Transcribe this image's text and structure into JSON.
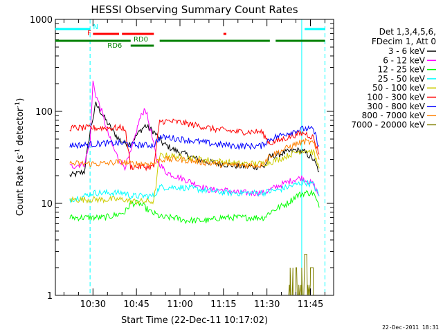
{
  "chart_data": {
    "type": "line",
    "title": "HESSI Observing Summary Count Rates",
    "xlabel": "Start Time (22-Dec-11 10:17:02)",
    "ylabel_parts": [
      "Count Rate (s",
      "-1",
      " detector",
      "-1",
      ")"
    ],
    "yscale": "log",
    "ylim": [
      1,
      1000
    ],
    "xlim": [
      "10:17:02",
      "11:53:00"
    ],
    "ytick_values": [
      1,
      10,
      100,
      1000
    ],
    "ytick_labels": [
      "1",
      "10",
      "100",
      "1000"
    ],
    "xtick_values": [
      "10:30",
      "10:45",
      "11:00",
      "11:15",
      "11:30",
      "11:45"
    ],
    "xtick_labels": [
      "10:30",
      "10:45",
      "11:00",
      "11:15",
      "11:30",
      "11:45"
    ],
    "timestamp": "22-Dec-2011 18:31",
    "legend": {
      "placement": "right",
      "header": [
        "Det 1,3,4,5,6,",
        "FDecim 1, Att 0"
      ]
    },
    "flag_labels": {
      "N": "N",
      "F": "F",
      "RD0": "RD0",
      "RD6": "RD6"
    },
    "flags": {
      "N": {
        "color": "#00ffff",
        "intervals": [
          [
            "10:17",
            "10:29"
          ],
          [
            "11:43",
            "11:50"
          ]
        ]
      },
      "F": {
        "color": "#ff0000",
        "intervals": [
          [
            "10:30",
            "10:39"
          ],
          [
            "10:40",
            "10:51"
          ],
          [
            "11:15",
            "11:16"
          ]
        ]
      },
      "RD0": {
        "color": "#008000",
        "intervals": [
          [
            "10:17",
            "10:43"
          ],
          [
            "10:53",
            "11:31"
          ],
          [
            "11:33",
            "11:50"
          ]
        ]
      },
      "RD6": {
        "color": "#008000",
        "intervals": [
          [
            "10:43",
            "10:51"
          ]
        ]
      }
    },
    "vlines": [
      {
        "t": "10:29",
        "style": "dashed",
        "color": "#00ffff"
      },
      {
        "t": "11:42",
        "style": "solid",
        "color": "#00ffff"
      },
      {
        "t": "11:50",
        "style": "dashed",
        "color": "#00ffff"
      }
    ],
    "series": [
      {
        "name": "3 - 6 keV",
        "color": "#000000",
        "points": [
          [
            "10:22",
            20
          ],
          [
            "10:27",
            22
          ],
          [
            "10:29",
            60
          ],
          [
            "10:31",
            120
          ],
          [
            "10:33",
            95
          ],
          [
            "10:35",
            75
          ],
          [
            "10:37",
            60
          ],
          [
            "10:39",
            50
          ],
          [
            "10:41",
            45
          ],
          [
            "10:43",
            45
          ],
          [
            "10:46",
            60
          ],
          [
            "10:48",
            70
          ],
          [
            "10:51",
            60
          ],
          [
            "10:54",
            45
          ],
          [
            "10:58",
            38
          ],
          [
            "11:02",
            34
          ],
          [
            "11:06",
            30
          ],
          [
            "11:10",
            28
          ],
          [
            "11:14",
            27
          ],
          [
            "11:18",
            26
          ],
          [
            "11:22",
            25
          ],
          [
            "11:26",
            25
          ],
          [
            "11:29",
            25
          ],
          [
            "11:31",
            32
          ],
          [
            "11:34",
            34
          ],
          [
            "11:37",
            36
          ],
          [
            "11:40",
            38
          ],
          [
            "11:43",
            36
          ],
          [
            "11:46",
            30
          ],
          [
            "11:48",
            22
          ]
        ]
      },
      {
        "name": "6 - 12 keV",
        "color": "#ff00ff",
        "points": [
          [
            "10:22",
            25
          ],
          [
            "10:27",
            27
          ],
          [
            "10:29",
            45
          ],
          [
            "10:30",
            210
          ],
          [
            "10:31",
            150
          ],
          [
            "10:33",
            100
          ],
          [
            "10:35",
            60
          ],
          [
            "10:37",
            40
          ],
          [
            "10:39",
            30
          ],
          [
            "10:41",
            25
          ],
          [
            "10:43",
            35
          ],
          [
            "10:46",
            80
          ],
          [
            "10:48",
            110
          ],
          [
            "10:50",
            60
          ],
          [
            "10:52",
            30
          ],
          [
            "10:55",
            22
          ],
          [
            "10:58",
            20
          ],
          [
            "11:02",
            18
          ],
          [
            "11:06",
            16
          ],
          [
            "11:10",
            14
          ],
          [
            "11:15",
            14
          ],
          [
            "11:20",
            13
          ],
          [
            "11:25",
            13
          ],
          [
            "11:29",
            13
          ],
          [
            "11:31",
            14
          ],
          [
            "11:35",
            16
          ],
          [
            "11:39",
            18
          ],
          [
            "11:42",
            19
          ],
          [
            "11:46",
            16
          ],
          [
            "11:48",
            12
          ]
        ]
      },
      {
        "name": "12 - 25 keV",
        "color": "#00ff00",
        "points": [
          [
            "10:22",
            7
          ],
          [
            "10:27",
            7
          ],
          [
            "10:30",
            7
          ],
          [
            "10:34",
            7
          ],
          [
            "10:38",
            7.5
          ],
          [
            "10:41",
            8
          ],
          [
            "10:43",
            10
          ],
          [
            "10:46",
            10
          ],
          [
            "10:48",
            9
          ],
          [
            "10:50",
            8
          ],
          [
            "10:54",
            7
          ],
          [
            "10:58",
            7
          ],
          [
            "11:02",
            6.5
          ],
          [
            "11:06",
            6.5
          ],
          [
            "11:10",
            6.5
          ],
          [
            "11:14",
            7
          ],
          [
            "11:18",
            7
          ],
          [
            "11:22",
            7
          ],
          [
            "11:26",
            7
          ],
          [
            "11:29",
            7
          ],
          [
            "11:31",
            8
          ],
          [
            "11:34",
            9
          ],
          [
            "11:37",
            10
          ],
          [
            "11:40",
            12
          ],
          [
            "11:43",
            13
          ],
          [
            "11:46",
            13
          ],
          [
            "11:48",
            9
          ]
        ]
      },
      {
        "name": "25 - 50 keV",
        "color": "#00ffff",
        "points": [
          [
            "10:22",
            11
          ],
          [
            "10:27",
            12
          ],
          [
            "10:30",
            13
          ],
          [
            "10:34",
            13
          ],
          [
            "10:38",
            13
          ],
          [
            "10:41",
            13
          ],
          [
            "10:43",
            12
          ],
          [
            "10:46",
            12
          ],
          [
            "10:49",
            12
          ],
          [
            "10:51",
            12
          ],
          [
            "10:53",
            15
          ],
          [
            "10:56",
            15
          ],
          [
            "11:00",
            15
          ],
          [
            "11:04",
            14.5
          ],
          [
            "11:08",
            14
          ],
          [
            "11:12",
            13.5
          ],
          [
            "11:16",
            13
          ],
          [
            "11:20",
            13
          ],
          [
            "11:24",
            13
          ],
          [
            "11:28",
            13
          ],
          [
            "11:31",
            13.5
          ],
          [
            "11:34",
            14
          ],
          [
            "11:37",
            15
          ],
          [
            "11:40",
            16
          ],
          [
            "11:43",
            17
          ],
          [
            "11:46",
            16
          ],
          [
            "11:48",
            12
          ]
        ]
      },
      {
        "name": "50 - 100 keV",
        "color": "#cccc00",
        "points": [
          [
            "10:22",
            11
          ],
          [
            "10:27",
            11
          ],
          [
            "10:30",
            11
          ],
          [
            "10:34",
            11
          ],
          [
            "10:38",
            11
          ],
          [
            "10:41",
            11
          ],
          [
            "10:43",
            10.5
          ],
          [
            "10:46",
            10.5
          ],
          [
            "10:49",
            10.5
          ],
          [
            "10:51",
            10.5
          ],
          [
            "10:53",
            33
          ],
          [
            "10:56",
            33
          ],
          [
            "11:00",
            32
          ],
          [
            "11:04",
            31
          ],
          [
            "11:08",
            30
          ],
          [
            "11:12",
            29
          ],
          [
            "11:16",
            28
          ],
          [
            "11:20",
            27
          ],
          [
            "11:24",
            27
          ],
          [
            "11:28",
            27
          ],
          [
            "11:31",
            28
          ],
          [
            "11:34",
            30
          ],
          [
            "11:37",
            33
          ],
          [
            "11:40",
            36
          ],
          [
            "11:43",
            38
          ],
          [
            "11:46",
            36
          ],
          [
            "11:48",
            24
          ]
        ]
      },
      {
        "name": "100 - 300 keV",
        "color": "#ff0000",
        "points": [
          [
            "10:22",
            66
          ],
          [
            "10:27",
            66
          ],
          [
            "10:30",
            66
          ],
          [
            "10:34",
            66
          ],
          [
            "10:38",
            66
          ],
          [
            "10:41",
            66
          ],
          [
            "10:43",
            25
          ],
          [
            "10:46",
            25
          ],
          [
            "10:49",
            25
          ],
          [
            "10:51",
            25
          ],
          [
            "10:53",
            78
          ],
          [
            "10:56",
            78
          ],
          [
            "11:00",
            76
          ],
          [
            "11:04",
            72
          ],
          [
            "11:08",
            68
          ],
          [
            "11:12",
            64
          ],
          [
            "11:16",
            62
          ],
          [
            "11:20",
            60
          ],
          [
            "11:24",
            60
          ],
          [
            "11:28",
            60
          ],
          [
            "11:31",
            45
          ],
          [
            "11:34",
            48
          ],
          [
            "11:37",
            52
          ],
          [
            "11:40",
            56
          ],
          [
            "11:43",
            58
          ],
          [
            "11:46",
            52
          ],
          [
            "11:48",
            34
          ]
        ]
      },
      {
        "name": "300 - 800 keV",
        "color": "#0000ff",
        "points": [
          [
            "10:22",
            43
          ],
          [
            "10:27",
            43
          ],
          [
            "10:30",
            44
          ],
          [
            "10:34",
            45
          ],
          [
            "10:38",
            45
          ],
          [
            "10:41",
            45
          ],
          [
            "10:43",
            43
          ],
          [
            "10:46",
            43
          ],
          [
            "10:49",
            43
          ],
          [
            "10:51",
            43
          ],
          [
            "10:53",
            52
          ],
          [
            "10:56",
            52
          ],
          [
            "11:00",
            50
          ],
          [
            "11:04",
            48
          ],
          [
            "11:08",
            46
          ],
          [
            "11:12",
            44
          ],
          [
            "11:16",
            43
          ],
          [
            "11:20",
            42
          ],
          [
            "11:24",
            42
          ],
          [
            "11:28",
            42
          ],
          [
            "11:31",
            50
          ],
          [
            "11:34",
            54
          ],
          [
            "11:37",
            58
          ],
          [
            "11:40",
            62
          ],
          [
            "11:43",
            65
          ],
          [
            "11:46",
            63
          ],
          [
            "11:48",
            42
          ]
        ]
      },
      {
        "name": "800 - 7000 keV",
        "color": "#ff8000",
        "points": [
          [
            "10:22",
            27
          ],
          [
            "10:27",
            27
          ],
          [
            "10:30",
            27
          ],
          [
            "10:34",
            27
          ],
          [
            "10:38",
            28
          ],
          [
            "10:41",
            28
          ],
          [
            "10:43",
            27
          ],
          [
            "10:46",
            27
          ],
          [
            "10:49",
            27
          ],
          [
            "10:51",
            27
          ],
          [
            "10:53",
            30
          ],
          [
            "10:56",
            30
          ],
          [
            "11:00",
            30
          ],
          [
            "11:04",
            29
          ],
          [
            "11:08",
            28
          ],
          [
            "11:12",
            27
          ],
          [
            "11:16",
            26
          ],
          [
            "11:20",
            26
          ],
          [
            "11:24",
            26
          ],
          [
            "11:28",
            26
          ],
          [
            "11:31",
            33
          ],
          [
            "11:34",
            36
          ],
          [
            "11:37",
            40
          ],
          [
            "11:40",
            44
          ],
          [
            "11:43",
            47
          ],
          [
            "11:46",
            45
          ],
          [
            "11:48",
            30
          ]
        ]
      },
      {
        "name": "7000 - 20000 keV",
        "color": "#808000",
        "points": [
          [
            "11:37",
            1.3
          ],
          [
            "11:38",
            2.0
          ],
          [
            "11:39",
            1.0
          ],
          [
            "11:40",
            2.0
          ],
          [
            "11:41",
            1.3
          ],
          [
            "11:42",
            2.0
          ],
          [
            "11:43",
            2.8
          ],
          [
            "11:44",
            1.3
          ],
          [
            "11:45",
            2.0
          ],
          [
            "11:46",
            1.0
          ],
          [
            "11:47",
            2.0
          ]
        ]
      }
    ]
  }
}
